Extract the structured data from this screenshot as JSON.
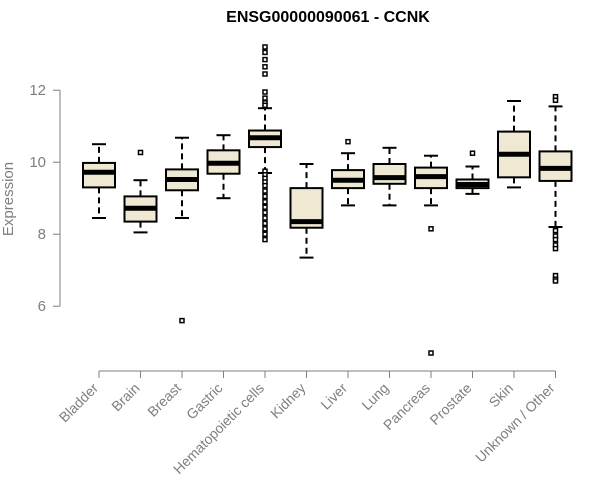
{
  "chart_data": {
    "type": "boxplot",
    "title": "ENSG00000090061 - CCNK",
    "ylabel": "Expression",
    "xlabel": "",
    "ylim": [
      4.45,
      13.45
    ],
    "yticks": [
      6,
      8,
      10,
      12
    ],
    "ytick_labels": [
      "6",
      "8",
      "10",
      "12"
    ],
    "box_fill": "#efe8d2",
    "box_stroke": "#000000",
    "axis_color": "#7f7f7f",
    "categories": [
      "Bladder",
      "Brain",
      "Breast",
      "Gastric",
      "Hematopoietic cells",
      "Kidney",
      "Liver",
      "Lung",
      "Pancreas",
      "Prostate",
      "Skin",
      "Unknown / Other"
    ],
    "boxes": [
      {
        "category": "Bladder",
        "whisker_low": 8.45,
        "q1": 9.3,
        "median": 9.72,
        "q3": 9.98,
        "whisker_high": 10.5,
        "outliers": []
      },
      {
        "category": "Brain",
        "whisker_low": 8.05,
        "q1": 8.35,
        "median": 8.72,
        "q3": 9.05,
        "whisker_high": 9.5,
        "outliers": [
          10.27
        ]
      },
      {
        "category": "Breast",
        "whisker_low": 8.45,
        "q1": 9.22,
        "median": 9.52,
        "q3": 9.8,
        "whisker_high": 10.68,
        "outliers": [
          5.6
        ]
      },
      {
        "category": "Gastric",
        "whisker_low": 9.0,
        "q1": 9.68,
        "median": 9.97,
        "q3": 10.33,
        "whisker_high": 10.75,
        "outliers": []
      },
      {
        "category": "Hematopoietic cells",
        "whisker_low": 9.7,
        "q1": 10.42,
        "median": 10.68,
        "q3": 10.88,
        "whisker_high": 11.5,
        "outliers": [
          13.2,
          13.05,
          12.85,
          12.65,
          12.45,
          11.95,
          11.78,
          11.65,
          11.58,
          9.75,
          9.65,
          9.55,
          9.45,
          9.35,
          9.2,
          9.05,
          8.9,
          8.75,
          8.6,
          8.45,
          8.3,
          8.15,
          8.0,
          7.85
        ]
      },
      {
        "category": "Kidney",
        "whisker_low": 7.35,
        "q1": 8.18,
        "median": 8.35,
        "q3": 9.28,
        "whisker_high": 9.95,
        "outliers": []
      },
      {
        "category": "Liver",
        "whisker_low": 8.8,
        "q1": 9.28,
        "median": 9.5,
        "q3": 9.78,
        "whisker_high": 10.25,
        "outliers": [
          10.57
        ]
      },
      {
        "category": "Lung",
        "whisker_low": 8.8,
        "q1": 9.4,
        "median": 9.57,
        "q3": 9.95,
        "whisker_high": 10.4,
        "outliers": []
      },
      {
        "category": "Pancreas",
        "whisker_low": 8.8,
        "q1": 9.28,
        "median": 9.6,
        "q3": 9.85,
        "whisker_high": 10.18,
        "outliers": [
          8.15,
          4.7
        ]
      },
      {
        "category": "Prostate",
        "whisker_low": 9.12,
        "q1": 9.28,
        "median": 9.38,
        "q3": 9.52,
        "whisker_high": 9.88,
        "outliers": [
          10.25
        ]
      },
      {
        "category": "Skin",
        "whisker_low": 9.3,
        "q1": 9.58,
        "median": 10.22,
        "q3": 10.85,
        "whisker_high": 11.7,
        "outliers": []
      },
      {
        "category": "Unknown / Other",
        "whisker_low": 8.2,
        "q1": 9.48,
        "median": 9.83,
        "q3": 10.3,
        "whisker_high": 11.55,
        "outliers": [
          11.82,
          11.72,
          8.1,
          7.95,
          7.85,
          7.7,
          7.6,
          6.85,
          6.75,
          6.7
        ]
      }
    ],
    "grid": false,
    "legend": "none"
  }
}
